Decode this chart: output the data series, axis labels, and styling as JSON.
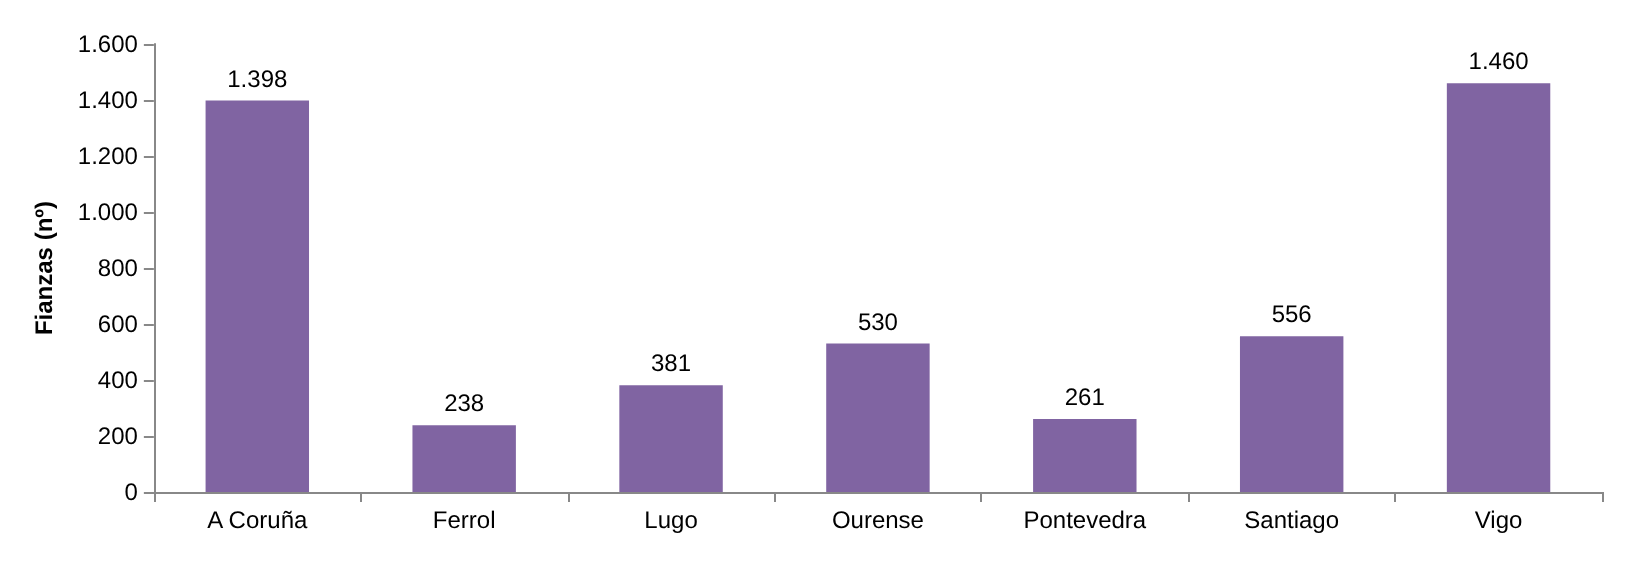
{
  "chart_data": {
    "type": "bar",
    "ylabel": "Fianzas (nº)",
    "categories": [
      "A Coruña",
      "Ferrol",
      "Lugo",
      "Ourense",
      "Pontevedra",
      "Santiago",
      "Vigo"
    ],
    "values": [
      1398,
      238,
      381,
      530,
      261,
      556,
      1460
    ],
    "value_labels": [
      "1.398",
      "238",
      "381",
      "530",
      "261",
      "556",
      "1.460"
    ],
    "color": "#8064a2",
    "ylim": [
      0,
      1600
    ],
    "yticks": [
      0,
      {
        "value": 200,
        "label": "200"
      },
      {
        "value": 400,
        "label": "400"
      },
      {
        "value": 600,
        "label": "600"
      },
      {
        "value": 800,
        "label": "800"
      },
      {
        "value": 1000,
        "label": "1.000"
      },
      {
        "value": 1200,
        "label": "1.200"
      },
      {
        "value": 1400,
        "label": "1.400"
      },
      {
        "value": 1600,
        "label": "1.600"
      }
    ],
    "grid": false
  }
}
